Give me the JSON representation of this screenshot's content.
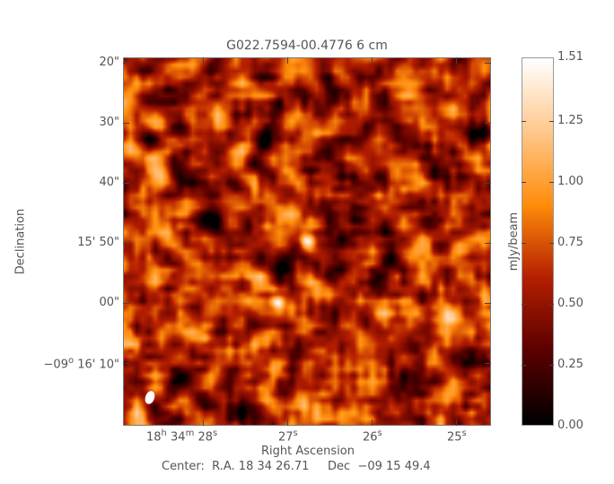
{
  "chart_data": {
    "type": "heatmap",
    "title": "G022.7594-00.4776 6 cm",
    "xlabel": "Right Ascension",
    "ylabel": "Declination",
    "x_ticks": [
      {
        "value_s": 28,
        "h": "18",
        "m": "34",
        "s": "28"
      },
      {
        "value_s": 27,
        "s": "27"
      },
      {
        "value_s": 26,
        "s": "26"
      },
      {
        "value_s": 25,
        "s": "25"
      }
    ],
    "y_ticks": [
      {
        "value_arcsec": 20,
        "label": "20\""
      },
      {
        "value_arcsec": 30,
        "label": "30\""
      },
      {
        "value_arcsec": 40,
        "label": "40\""
      },
      {
        "value_arcsec": 50,
        "label": "15' 50\""
      },
      {
        "value_arcsec": 60,
        "label": "00\""
      },
      {
        "value_arcsec": 70,
        "label": "−09",
        "deg_sup": "o",
        "label_rest": " 16' 10\""
      }
    ],
    "colorbar": {
      "label": "mJy/beam",
      "range": [
        0.0,
        1.51
      ],
      "ticks": [
        "1.51",
        "1.25",
        "1.00",
        "0.75",
        "0.50",
        "0.25",
        "0.00"
      ],
      "colormap": [
        "#000000",
        "#5a0000",
        "#b41e00",
        "#ff8c0a",
        "#ffc88c",
        "#ffffff"
      ]
    },
    "center": "Center:  R.A. 18 34 26.71     Dec  −09 15 49.4",
    "beam_color": "#ffffff"
  }
}
